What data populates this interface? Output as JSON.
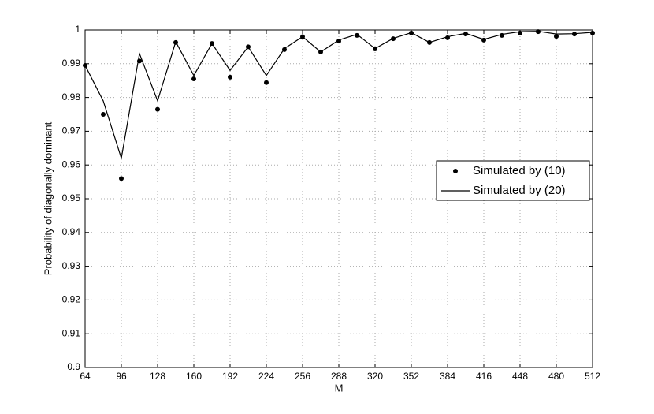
{
  "chart_data": {
    "type": "line",
    "xlabel": "M",
    "ylabel": "Probability of diagonally dominant",
    "x": [
      64,
      80,
      96,
      112,
      128,
      144,
      160,
      176,
      192,
      208,
      224,
      240,
      256,
      272,
      288,
      304,
      320,
      336,
      352,
      368,
      384,
      400,
      416,
      432,
      448,
      464,
      480,
      496,
      512
    ],
    "series": [
      {
        "name": "Simulated by (10)",
        "color": "#000000",
        "style": "markers",
        "values": [
          0.9895,
          0.975,
          0.956,
          0.9908,
          0.9765,
          0.9963,
          0.9855,
          0.996,
          0.986,
          0.995,
          0.9844,
          0.9942,
          0.998,
          0.9935,
          0.9967,
          0.9984,
          0.9944,
          0.9974,
          0.9991,
          0.9963,
          0.9977,
          0.9988,
          0.997,
          0.9984,
          0.9991,
          0.9995,
          0.9981,
          0.9988,
          0.9991
        ]
      },
      {
        "name": "Simulated by (20)",
        "color": "#000000",
        "style": "line",
        "values": [
          0.9895,
          0.979,
          0.962,
          0.993,
          0.979,
          0.9965,
          0.9865,
          0.996,
          0.988,
          0.995,
          0.9865,
          0.9945,
          0.998,
          0.9935,
          0.997,
          0.9987,
          0.9945,
          0.9975,
          0.9992,
          0.9963,
          0.998,
          0.999,
          0.9972,
          0.9987,
          0.9995,
          0.9996,
          0.9988,
          0.9989,
          0.9993
        ]
      }
    ],
    "xlim": [
      64,
      512
    ],
    "xticks": [
      64,
      96,
      128,
      160,
      192,
      224,
      256,
      288,
      320,
      352,
      384,
      416,
      448,
      480,
      512
    ],
    "ylim": [
      0.9,
      1
    ],
    "yticks": [
      0.9,
      0.91,
      0.92,
      0.93,
      0.94,
      0.95,
      0.96,
      0.97,
      0.98,
      0.99,
      1
    ],
    "grid": true,
    "legend": "right"
  }
}
